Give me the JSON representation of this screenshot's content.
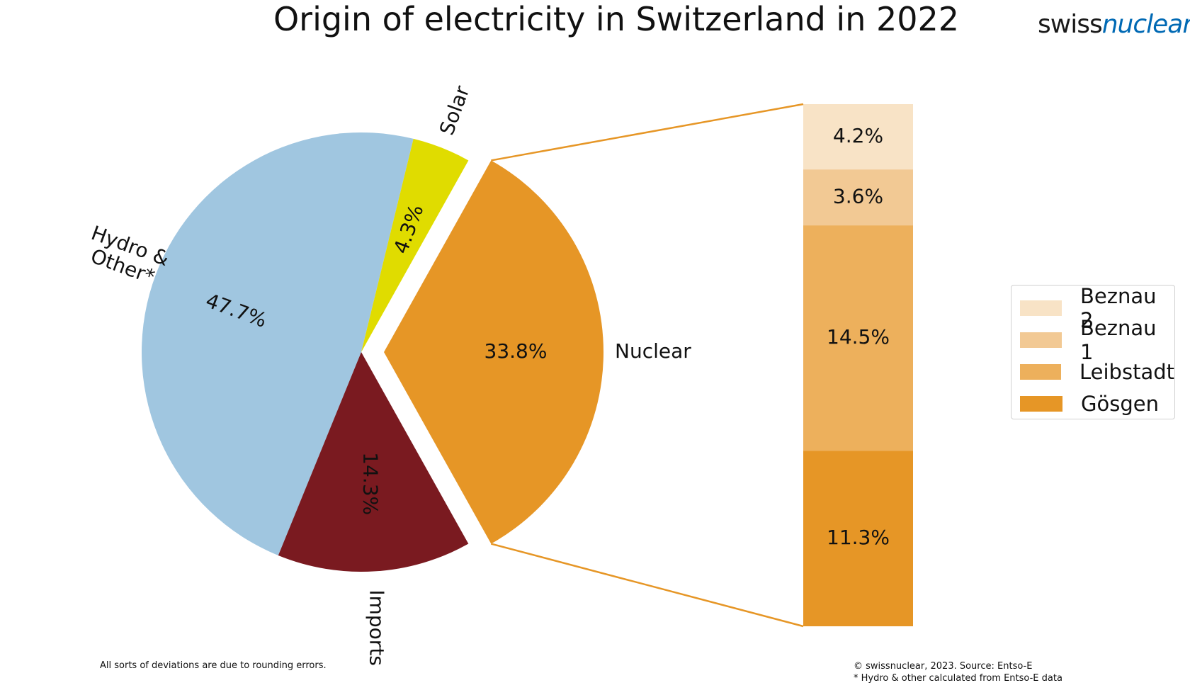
{
  "title": "Origin of electricity in Switzerland in 2022",
  "logo": {
    "part1": "swiss",
    "part2": "nuclear",
    "color2": "#0069b4"
  },
  "chart_data": [
    {
      "type": "pie",
      "slices": [
        {
          "label": "Hydro & Other*",
          "value": 47.7,
          "pct_label": "47.7%",
          "color": "#a0c6e0"
        },
        {
          "label": "Solar",
          "value": 4.3,
          "pct_label": "4.3%",
          "color": "#e0dc00"
        },
        {
          "label": "Nuclear",
          "value": 33.8,
          "pct_label": "33.8%",
          "color": "#e69626",
          "exploded": true
        },
        {
          "label": "Imports",
          "value": 14.3,
          "pct_label": "14.3%",
          "color": "#7a1a20"
        }
      ]
    },
    {
      "type": "bar",
      "stacked": true,
      "categories": [
        "Nuclear"
      ],
      "series": [
        {
          "name": "Gösgen",
          "value": 11.3,
          "pct_label": "11.3%",
          "color": "#e69626"
        },
        {
          "name": "Leibstadt",
          "value": 14.5,
          "pct_label": "14.5%",
          "color": "#edb05c"
        },
        {
          "name": "Beznau 1",
          "value": 3.6,
          "pct_label": "3.6%",
          "color": "#f2c994"
        },
        {
          "name": "Beznau 2",
          "value": 4.2,
          "pct_label": "4.2%",
          "color": "#f8e3c6"
        }
      ],
      "legend_position": "right"
    }
  ],
  "legend": [
    {
      "label": "Beznau 2",
      "color": "#f8e3c6"
    },
    {
      "label": "Beznau 1",
      "color": "#f2c994"
    },
    {
      "label": "Leibstadt",
      "color": "#edb05c"
    },
    {
      "label": "Gösgen",
      "color": "#e69626"
    }
  ],
  "connector_color": "#e69626",
  "notes": {
    "left": "All sorts of deviations are due to rounding errors.",
    "right_line1": "© swissnuclear, 2023. Source: Entso-E",
    "right_line2": "* Hydro & other calculated from Entso-E data"
  }
}
